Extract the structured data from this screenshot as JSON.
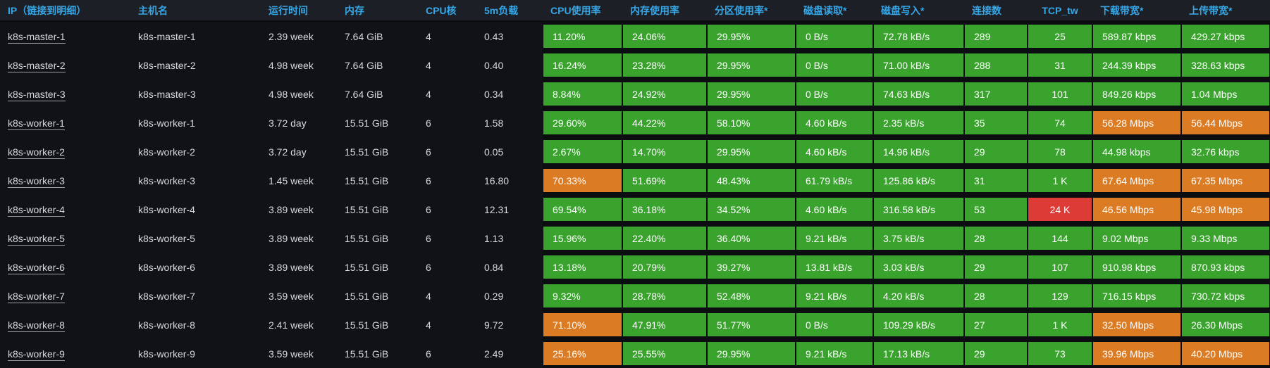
{
  "colors": {
    "green": "#3aa32e",
    "orange": "#db7b23",
    "red": "#dd3b35",
    "header_blue": "#36a6e6",
    "page_bg": "#111217",
    "header_bg": "#1c2026",
    "body_text": "#d8d9da"
  },
  "table": {
    "columns": [
      {
        "key": "ip",
        "label": "IP（链接到明细）",
        "colored": false,
        "align": "left"
      },
      {
        "key": "hostname",
        "label": "主机名",
        "colored": false,
        "align": "left"
      },
      {
        "key": "uptime",
        "label": "运行时间",
        "colored": false,
        "align": "left"
      },
      {
        "key": "memory",
        "label": "内存",
        "colored": false,
        "align": "left"
      },
      {
        "key": "cpu_cores",
        "label": "CPU核",
        "colored": false,
        "align": "left"
      },
      {
        "key": "load5m",
        "label": "5m负载",
        "colored": false,
        "align": "left"
      },
      {
        "key": "cpu_usage",
        "label": "CPU使用率",
        "colored": true,
        "align": "left"
      },
      {
        "key": "mem_usage",
        "label": "内存使用率",
        "colored": true,
        "align": "left"
      },
      {
        "key": "part_usage",
        "label": "分区使用率*",
        "colored": true,
        "align": "left"
      },
      {
        "key": "disk_read",
        "label": "磁盘读取*",
        "colored": true,
        "align": "left"
      },
      {
        "key": "disk_write",
        "label": "磁盘写入*",
        "colored": true,
        "align": "left"
      },
      {
        "key": "connections",
        "label": "连接数",
        "colored": true,
        "align": "left"
      },
      {
        "key": "tcp_tw",
        "label": "TCP_tw",
        "colored": true,
        "align": "center"
      },
      {
        "key": "download",
        "label": "下载带宽*",
        "colored": true,
        "align": "left"
      },
      {
        "key": "upload",
        "label": "上传带宽*",
        "colored": true,
        "align": "left"
      }
    ],
    "rows": [
      {
        "values": {
          "ip": "k8s-master-1",
          "hostname": "k8s-master-1",
          "uptime": "2.39 week",
          "memory": "7.64 GiB",
          "cpu_cores": "4",
          "load5m": "0.43",
          "cpu_usage": "11.20%",
          "mem_usage": "24.06%",
          "part_usage": "29.95%",
          "disk_read": "0 B/s",
          "disk_write": "72.78 kB/s",
          "connections": "289",
          "tcp_tw": "25",
          "download": "589.87 kbps",
          "upload": "429.27 kbps"
        },
        "cell_colors": {
          "cpu_usage": "green",
          "mem_usage": "green",
          "part_usage": "green",
          "disk_read": "green",
          "disk_write": "green",
          "connections": "green",
          "tcp_tw": "green",
          "download": "green",
          "upload": "green"
        }
      },
      {
        "values": {
          "ip": "k8s-master-2",
          "hostname": "k8s-master-2",
          "uptime": "4.98 week",
          "memory": "7.64 GiB",
          "cpu_cores": "4",
          "load5m": "0.40",
          "cpu_usage": "16.24%",
          "mem_usage": "23.28%",
          "part_usage": "29.95%",
          "disk_read": "0 B/s",
          "disk_write": "71.00 kB/s",
          "connections": "288",
          "tcp_tw": "31",
          "download": "244.39 kbps",
          "upload": "328.63 kbps"
        },
        "cell_colors": {
          "cpu_usage": "green",
          "mem_usage": "green",
          "part_usage": "green",
          "disk_read": "green",
          "disk_write": "green",
          "connections": "green",
          "tcp_tw": "green",
          "download": "green",
          "upload": "green"
        }
      },
      {
        "values": {
          "ip": "k8s-master-3",
          "hostname": "k8s-master-3",
          "uptime": "4.98 week",
          "memory": "7.64 GiB",
          "cpu_cores": "4",
          "load5m": "0.34",
          "cpu_usage": "8.84%",
          "mem_usage": "24.92%",
          "part_usage": "29.95%",
          "disk_read": "0 B/s",
          "disk_write": "74.63 kB/s",
          "connections": "317",
          "tcp_tw": "101",
          "download": "849.26 kbps",
          "upload": "1.04 Mbps"
        },
        "cell_colors": {
          "cpu_usage": "green",
          "mem_usage": "green",
          "part_usage": "green",
          "disk_read": "green",
          "disk_write": "green",
          "connections": "green",
          "tcp_tw": "green",
          "download": "green",
          "upload": "green"
        }
      },
      {
        "values": {
          "ip": "k8s-worker-1",
          "hostname": "k8s-worker-1",
          "uptime": "3.72 day",
          "memory": "15.51 GiB",
          "cpu_cores": "6",
          "load5m": "1.58",
          "cpu_usage": "29.60%",
          "mem_usage": "44.22%",
          "part_usage": "58.10%",
          "disk_read": "4.60 kB/s",
          "disk_write": "2.35 kB/s",
          "connections": "35",
          "tcp_tw": "74",
          "download": "56.28 Mbps",
          "upload": "56.44 Mbps"
        },
        "cell_colors": {
          "cpu_usage": "green",
          "mem_usage": "green",
          "part_usage": "green",
          "disk_read": "green",
          "disk_write": "green",
          "connections": "green",
          "tcp_tw": "green",
          "download": "orange",
          "upload": "orange"
        }
      },
      {
        "values": {
          "ip": "k8s-worker-2",
          "hostname": "k8s-worker-2",
          "uptime": "3.72 day",
          "memory": "15.51 GiB",
          "cpu_cores": "6",
          "load5m": "0.05",
          "cpu_usage": "2.67%",
          "mem_usage": "14.70%",
          "part_usage": "29.95%",
          "disk_read": "4.60 kB/s",
          "disk_write": "14.96 kB/s",
          "connections": "29",
          "tcp_tw": "78",
          "download": "44.98 kbps",
          "upload": "32.76 kbps"
        },
        "cell_colors": {
          "cpu_usage": "green",
          "mem_usage": "green",
          "part_usage": "green",
          "disk_read": "green",
          "disk_write": "green",
          "connections": "green",
          "tcp_tw": "green",
          "download": "green",
          "upload": "green"
        }
      },
      {
        "values": {
          "ip": "k8s-worker-3",
          "hostname": "k8s-worker-3",
          "uptime": "1.45 week",
          "memory": "15.51 GiB",
          "cpu_cores": "6",
          "load5m": "16.80",
          "cpu_usage": "70.33%",
          "mem_usage": "51.69%",
          "part_usage": "48.43%",
          "disk_read": "61.79 kB/s",
          "disk_write": "125.86 kB/s",
          "connections": "31",
          "tcp_tw": "1 K",
          "download": "67.64 Mbps",
          "upload": "67.35 Mbps"
        },
        "cell_colors": {
          "cpu_usage": "orange",
          "mem_usage": "green",
          "part_usage": "green",
          "disk_read": "green",
          "disk_write": "green",
          "connections": "green",
          "tcp_tw": "green",
          "download": "orange",
          "upload": "orange"
        }
      },
      {
        "values": {
          "ip": "k8s-worker-4",
          "hostname": "k8s-worker-4",
          "uptime": "3.89 week",
          "memory": "15.51 GiB",
          "cpu_cores": "6",
          "load5m": "12.31",
          "cpu_usage": "69.54%",
          "mem_usage": "36.18%",
          "part_usage": "34.52%",
          "disk_read": "4.60 kB/s",
          "disk_write": "316.58 kB/s",
          "connections": "53",
          "tcp_tw": "24 K",
          "download": "46.56 Mbps",
          "upload": "45.98 Mbps"
        },
        "cell_colors": {
          "cpu_usage": "green",
          "mem_usage": "green",
          "part_usage": "green",
          "disk_read": "green",
          "disk_write": "green",
          "connections": "green",
          "tcp_tw": "red",
          "download": "orange",
          "upload": "orange"
        }
      },
      {
        "values": {
          "ip": "k8s-worker-5",
          "hostname": "k8s-worker-5",
          "uptime": "3.89 week",
          "memory": "15.51 GiB",
          "cpu_cores": "6",
          "load5m": "1.13",
          "cpu_usage": "15.96%",
          "mem_usage": "22.40%",
          "part_usage": "36.40%",
          "disk_read": "9.21 kB/s",
          "disk_write": "3.75 kB/s",
          "connections": "28",
          "tcp_tw": "144",
          "download": "9.02 Mbps",
          "upload": "9.33 Mbps"
        },
        "cell_colors": {
          "cpu_usage": "green",
          "mem_usage": "green",
          "part_usage": "green",
          "disk_read": "green",
          "disk_write": "green",
          "connections": "green",
          "tcp_tw": "green",
          "download": "green",
          "upload": "green"
        }
      },
      {
        "values": {
          "ip": "k8s-worker-6",
          "hostname": "k8s-worker-6",
          "uptime": "3.89 week",
          "memory": "15.51 GiB",
          "cpu_cores": "6",
          "load5m": "0.84",
          "cpu_usage": "13.18%",
          "mem_usage": "20.79%",
          "part_usage": "39.27%",
          "disk_read": "13.81 kB/s",
          "disk_write": "3.03 kB/s",
          "connections": "29",
          "tcp_tw": "107",
          "download": "910.98 kbps",
          "upload": "870.93 kbps"
        },
        "cell_colors": {
          "cpu_usage": "green",
          "mem_usage": "green",
          "part_usage": "green",
          "disk_read": "green",
          "disk_write": "green",
          "connections": "green",
          "tcp_tw": "green",
          "download": "green",
          "upload": "green"
        }
      },
      {
        "values": {
          "ip": "k8s-worker-7",
          "hostname": "k8s-worker-7",
          "uptime": "3.59 week",
          "memory": "15.51 GiB",
          "cpu_cores": "4",
          "load5m": "0.29",
          "cpu_usage": "9.32%",
          "mem_usage": "28.78%",
          "part_usage": "52.48%",
          "disk_read": "9.21 kB/s",
          "disk_write": "4.20 kB/s",
          "connections": "28",
          "tcp_tw": "129",
          "download": "716.15 kbps",
          "upload": "730.72 kbps"
        },
        "cell_colors": {
          "cpu_usage": "green",
          "mem_usage": "green",
          "part_usage": "green",
          "disk_read": "green",
          "disk_write": "green",
          "connections": "green",
          "tcp_tw": "green",
          "download": "green",
          "upload": "green"
        }
      },
      {
        "values": {
          "ip": "k8s-worker-8",
          "hostname": "k8s-worker-8",
          "uptime": "2.41 week",
          "memory": "15.51 GiB",
          "cpu_cores": "4",
          "load5m": "9.72",
          "cpu_usage": "71.10%",
          "mem_usage": "47.91%",
          "part_usage": "51.77%",
          "disk_read": "0 B/s",
          "disk_write": "109.29 kB/s",
          "connections": "27",
          "tcp_tw": "1 K",
          "download": "32.50 Mbps",
          "upload": "26.30 Mbps"
        },
        "cell_colors": {
          "cpu_usage": "orange",
          "mem_usage": "green",
          "part_usage": "green",
          "disk_read": "green",
          "disk_write": "green",
          "connections": "green",
          "tcp_tw": "green",
          "download": "orange",
          "upload": "green"
        }
      },
      {
        "values": {
          "ip": "k8s-worker-9",
          "hostname": "k8s-worker-9",
          "uptime": "3.59 week",
          "memory": "15.51 GiB",
          "cpu_cores": "6",
          "load5m": "2.49",
          "cpu_usage": "25.16%",
          "mem_usage": "25.55%",
          "part_usage": "29.95%",
          "disk_read": "9.21 kB/s",
          "disk_write": "17.13 kB/s",
          "connections": "29",
          "tcp_tw": "73",
          "download": "39.96 Mbps",
          "upload": "40.20 Mbps"
        },
        "cell_colors": {
          "cpu_usage": "orange",
          "mem_usage": "green",
          "part_usage": "green",
          "disk_read": "green",
          "disk_write": "green",
          "connections": "green",
          "tcp_tw": "green",
          "download": "orange",
          "upload": "orange"
        }
      }
    ]
  }
}
